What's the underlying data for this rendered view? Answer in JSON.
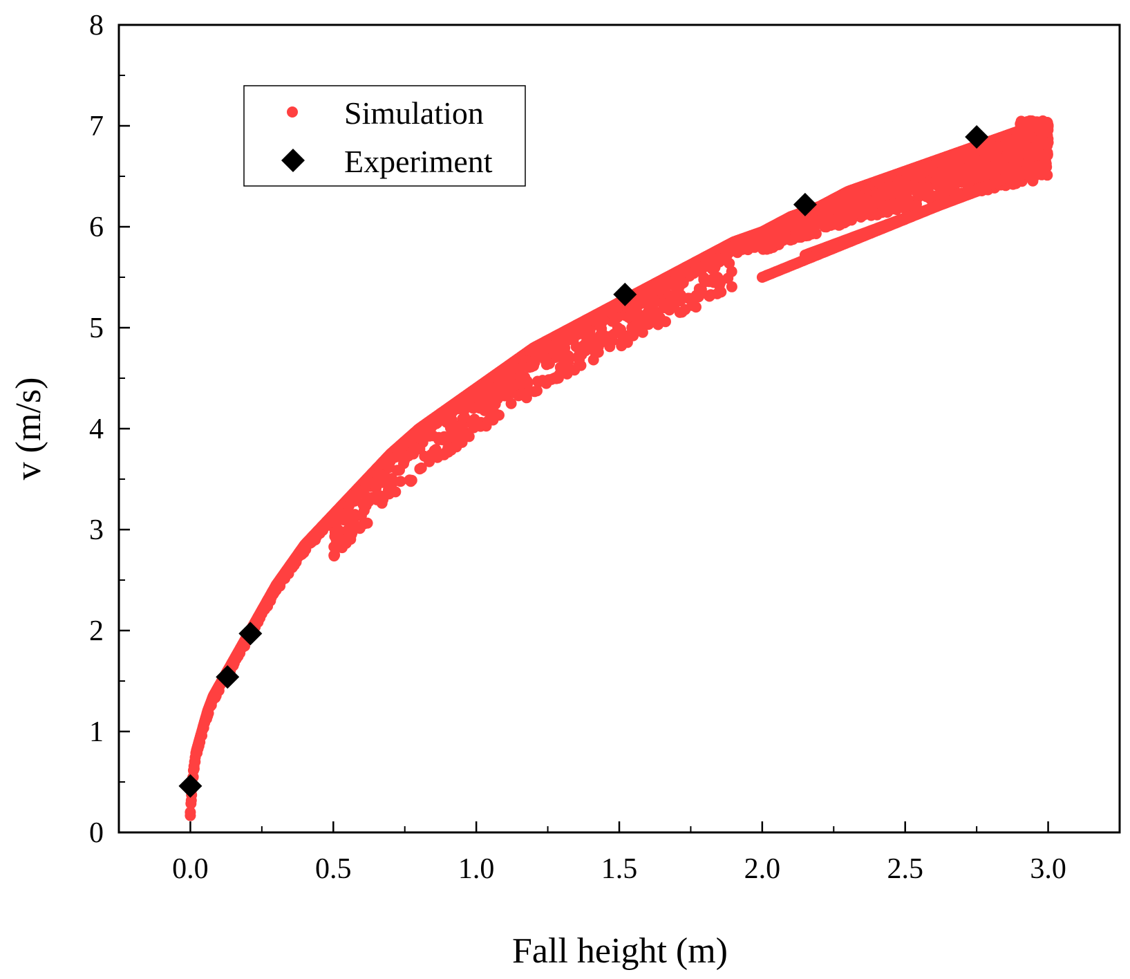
{
  "chart_data": {
    "type": "scatter",
    "title": "",
    "xlabel": "Fall height (m)",
    "ylabel": "v (m/s)",
    "xlim": [
      -0.25,
      3.25
    ],
    "ylim": [
      0,
      8
    ],
    "xticks": [
      "0.0",
      "0.5",
      "1.0",
      "1.5",
      "2.0",
      "2.5",
      "3.0"
    ],
    "yticks": [
      "0",
      "1",
      "2",
      "3",
      "4",
      "5",
      "6",
      "7",
      "8"
    ],
    "grid": false,
    "legend_position": "top-left",
    "series": [
      {
        "name": "Simulation",
        "marker": "circle",
        "color": "#ff4040",
        "x": [
          0.0,
          0.01,
          0.02,
          0.04,
          0.06,
          0.08,
          0.1,
          0.13,
          0.16,
          0.2,
          0.25,
          0.3,
          0.35,
          0.4,
          0.45,
          0.5,
          0.6,
          0.7,
          0.8,
          0.9,
          1.0,
          1.1,
          1.2,
          1.3,
          1.4,
          1.5,
          1.6,
          1.7,
          1.8,
          1.9,
          2.0,
          2.1,
          2.2,
          2.3,
          2.4,
          2.5,
          2.6,
          2.7,
          2.8,
          2.9,
          3.0
        ],
        "y": [
          0.2,
          0.6,
          0.8,
          1.0,
          1.2,
          1.35,
          1.45,
          1.6,
          1.75,
          1.95,
          2.2,
          2.45,
          2.65,
          2.85,
          3.0,
          3.15,
          3.45,
          3.75,
          4.0,
          4.2,
          4.4,
          4.6,
          4.8,
          4.95,
          5.1,
          5.25,
          5.4,
          5.55,
          5.7,
          5.85,
          5.95,
          6.1,
          6.2,
          6.35,
          6.45,
          6.55,
          6.65,
          6.75,
          6.85,
          6.95,
          7.0
        ]
      },
      {
        "name": "Experiment",
        "marker": "diamond",
        "color": "#000000",
        "x": [
          0.0,
          0.13,
          0.21,
          1.52,
          2.15,
          2.75
        ],
        "y": [
          0.46,
          1.54,
          1.97,
          5.33,
          6.22,
          6.89
        ]
      }
    ]
  }
}
